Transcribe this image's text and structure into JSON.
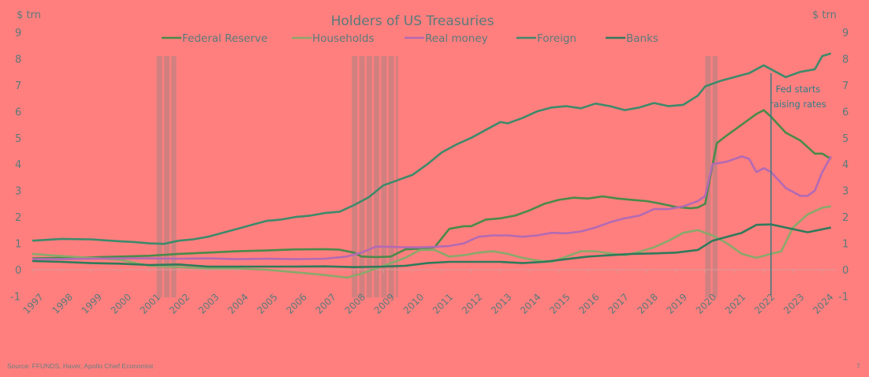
{
  "chart_data": {
    "type": "line",
    "title": "Holders of US Treasuries",
    "ylabel_left": "$ trn",
    "ylabel_right": "$ trn",
    "xlabel": "",
    "ylim": [
      -1,
      9
    ],
    "yticks": [
      -1,
      0,
      1,
      2,
      3,
      4,
      5,
      6,
      7,
      8,
      9
    ],
    "xlim": [
      1997,
      2024.5
    ],
    "xticks": [
      "1997",
      "1998",
      "1999",
      "2000",
      "2001",
      "2002",
      "2003",
      "2004",
      "2005",
      "2006",
      "2007",
      "2008",
      "2009",
      "2010",
      "2011",
      "2012",
      "2013",
      "2014",
      "2015",
      "2016",
      "2017",
      "2018",
      "2019",
      "2020",
      "2021",
      "2022",
      "2023",
      "2024"
    ],
    "grid": false,
    "legend_position": "top-center",
    "recessions": [
      [
        2001.25,
        2001.92
      ],
      [
        2007.92,
        2009.5
      ],
      [
        2020.0,
        2020.42
      ]
    ],
    "annotations": [
      {
        "x": 2022.25,
        "text_lines": [
          "Fed starts",
          "raising rates"
        ],
        "type": "vertical-line"
      }
    ],
    "series": [
      {
        "name": "Federal Reserve",
        "color": "#4a8a4a",
        "points": [
          [
            1997,
            0.43
          ],
          [
            1998,
            0.45
          ],
          [
            1999,
            0.47
          ],
          [
            2000,
            0.5
          ],
          [
            2001,
            0.53
          ],
          [
            2002,
            0.6
          ],
          [
            2003,
            0.65
          ],
          [
            2004,
            0.7
          ],
          [
            2005,
            0.73
          ],
          [
            2006,
            0.77
          ],
          [
            2007,
            0.78
          ],
          [
            2007.5,
            0.76
          ],
          [
            2008,
            0.65
          ],
          [
            2008.25,
            0.5
          ],
          [
            2008.75,
            0.48
          ],
          [
            2009.25,
            0.5
          ],
          [
            2009.75,
            0.77
          ],
          [
            2010.25,
            0.8
          ],
          [
            2010.75,
            0.85
          ],
          [
            2011.25,
            1.55
          ],
          [
            2011.75,
            1.65
          ],
          [
            2012,
            1.65
          ],
          [
            2012.5,
            1.9
          ],
          [
            2013,
            1.95
          ],
          [
            2013.5,
            2.05
          ],
          [
            2014,
            2.25
          ],
          [
            2014.5,
            2.5
          ],
          [
            2015,
            2.65
          ],
          [
            2015.5,
            2.73
          ],
          [
            2016,
            2.7
          ],
          [
            2016.5,
            2.78
          ],
          [
            2017,
            2.7
          ],
          [
            2017.5,
            2.65
          ],
          [
            2018,
            2.6
          ],
          [
            2018.5,
            2.5
          ],
          [
            2019,
            2.38
          ],
          [
            2019.5,
            2.33
          ],
          [
            2019.75,
            2.36
          ],
          [
            2020,
            2.5
          ],
          [
            2020.15,
            3.4
          ],
          [
            2020.4,
            4.8
          ],
          [
            2020.75,
            5.1
          ],
          [
            2021.25,
            5.5
          ],
          [
            2021.75,
            5.9
          ],
          [
            2022,
            6.05
          ],
          [
            2022.25,
            5.8
          ],
          [
            2022.75,
            5.2
          ],
          [
            2023.25,
            4.9
          ],
          [
            2023.75,
            4.4
          ],
          [
            2024,
            4.4
          ],
          [
            2024.3,
            4.2
          ]
        ]
      },
      {
        "name": "Households",
        "color": "#8aa86a",
        "points": [
          [
            1997,
            0.6
          ],
          [
            1998,
            0.52
          ],
          [
            1999,
            0.45
          ],
          [
            2000,
            0.38
          ],
          [
            2001,
            0.15
          ],
          [
            2002,
            0.1
          ],
          [
            2003,
            0.05
          ],
          [
            2004,
            0.05
          ],
          [
            2005,
            0.0
          ],
          [
            2006,
            -0.1
          ],
          [
            2007,
            -0.2
          ],
          [
            2007.75,
            -0.3
          ],
          [
            2008.25,
            -0.15
          ],
          [
            2008.75,
            0.05
          ],
          [
            2009.25,
            0.25
          ],
          [
            2009.75,
            0.45
          ],
          [
            2010.25,
            0.75
          ],
          [
            2010.75,
            0.75
          ],
          [
            2011.25,
            0.5
          ],
          [
            2011.75,
            0.55
          ],
          [
            2012.25,
            0.65
          ],
          [
            2012.75,
            0.7
          ],
          [
            2013.25,
            0.6
          ],
          [
            2013.75,
            0.45
          ],
          [
            2014.25,
            0.35
          ],
          [
            2014.75,
            0.3
          ],
          [
            2015.25,
            0.5
          ],
          [
            2015.75,
            0.7
          ],
          [
            2016.25,
            0.7
          ],
          [
            2016.75,
            0.62
          ],
          [
            2017.25,
            0.55
          ],
          [
            2017.75,
            0.68
          ],
          [
            2018.25,
            0.85
          ],
          [
            2018.75,
            1.1
          ],
          [
            2019.25,
            1.4
          ],
          [
            2019.75,
            1.5
          ],
          [
            2020.25,
            1.3
          ],
          [
            2020.75,
            1.0
          ],
          [
            2021.25,
            0.6
          ],
          [
            2021.75,
            0.45
          ],
          [
            2022.25,
            0.6
          ],
          [
            2022.6,
            0.7
          ],
          [
            2023,
            1.6
          ],
          [
            2023.5,
            2.1
          ],
          [
            2024,
            2.35
          ],
          [
            2024.3,
            2.4
          ]
        ]
      },
      {
        "name": "Real money",
        "color": "#b36ab3",
        "points": [
          [
            1997,
            0.4
          ],
          [
            1998,
            0.4
          ],
          [
            1999,
            0.42
          ],
          [
            2000,
            0.43
          ],
          [
            2001,
            0.43
          ],
          [
            2002,
            0.42
          ],
          [
            2003,
            0.43
          ],
          [
            2004,
            0.4
          ],
          [
            2005,
            0.42
          ],
          [
            2006,
            0.4
          ],
          [
            2007,
            0.42
          ],
          [
            2007.75,
            0.5
          ],
          [
            2008.25,
            0.65
          ],
          [
            2008.75,
            0.88
          ],
          [
            2009.25,
            0.87
          ],
          [
            2009.75,
            0.85
          ],
          [
            2010.25,
            0.85
          ],
          [
            2010.75,
            0.87
          ],
          [
            2011.25,
            0.9
          ],
          [
            2011.75,
            1.0
          ],
          [
            2012.25,
            1.25
          ],
          [
            2012.75,
            1.3
          ],
          [
            2013.25,
            1.3
          ],
          [
            2013.75,
            1.25
          ],
          [
            2014.25,
            1.3
          ],
          [
            2014.75,
            1.4
          ],
          [
            2015.25,
            1.38
          ],
          [
            2015.75,
            1.45
          ],
          [
            2016.25,
            1.6
          ],
          [
            2016.75,
            1.8
          ],
          [
            2017.25,
            1.95
          ],
          [
            2017.75,
            2.05
          ],
          [
            2018.25,
            2.3
          ],
          [
            2018.75,
            2.3
          ],
          [
            2019.25,
            2.4
          ],
          [
            2019.75,
            2.6
          ],
          [
            2020,
            2.8
          ],
          [
            2020.25,
            4.0
          ],
          [
            2020.75,
            4.1
          ],
          [
            2021.25,
            4.3
          ],
          [
            2021.5,
            4.2
          ],
          [
            2021.75,
            3.7
          ],
          [
            2022,
            3.85
          ],
          [
            2022.25,
            3.7
          ],
          [
            2022.75,
            3.1
          ],
          [
            2023.25,
            2.8
          ],
          [
            2023.5,
            2.8
          ],
          [
            2023.75,
            3.0
          ],
          [
            2024,
            3.7
          ],
          [
            2024.3,
            4.3
          ]
        ]
      },
      {
        "name": "Foreign",
        "color": "#3e8a6a",
        "points": [
          [
            1997,
            1.1
          ],
          [
            1998,
            1.17
          ],
          [
            1999,
            1.15
          ],
          [
            2000,
            1.08
          ],
          [
            2000.5,
            1.05
          ],
          [
            2001,
            1.0
          ],
          [
            2001.5,
            0.98
          ],
          [
            2002,
            1.1
          ],
          [
            2002.5,
            1.15
          ],
          [
            2003,
            1.25
          ],
          [
            2003.5,
            1.4
          ],
          [
            2004,
            1.55
          ],
          [
            2004.5,
            1.7
          ],
          [
            2005,
            1.85
          ],
          [
            2005.5,
            1.9
          ],
          [
            2006,
            2.0
          ],
          [
            2006.5,
            2.05
          ],
          [
            2007,
            2.15
          ],
          [
            2007.5,
            2.2
          ],
          [
            2008,
            2.45
          ],
          [
            2008.5,
            2.75
          ],
          [
            2009,
            3.2
          ],
          [
            2009.5,
            3.4
          ],
          [
            2010,
            3.6
          ],
          [
            2010.5,
            4.0
          ],
          [
            2011,
            4.45
          ],
          [
            2011.5,
            4.75
          ],
          [
            2012,
            5.0
          ],
          [
            2012.5,
            5.3
          ],
          [
            2013,
            5.6
          ],
          [
            2013.25,
            5.55
          ],
          [
            2013.75,
            5.75
          ],
          [
            2014.25,
            6.0
          ],
          [
            2014.75,
            6.15
          ],
          [
            2015.25,
            6.2
          ],
          [
            2015.75,
            6.12
          ],
          [
            2016.25,
            6.3
          ],
          [
            2016.75,
            6.2
          ],
          [
            2017.25,
            6.05
          ],
          [
            2017.75,
            6.15
          ],
          [
            2018.25,
            6.32
          ],
          [
            2018.75,
            6.2
          ],
          [
            2019.25,
            6.25
          ],
          [
            2019.75,
            6.6
          ],
          [
            2020,
            6.95
          ],
          [
            2020.5,
            7.15
          ],
          [
            2021,
            7.3
          ],
          [
            2021.5,
            7.45
          ],
          [
            2022,
            7.75
          ],
          [
            2022.75,
            7.3
          ],
          [
            2023.25,
            7.5
          ],
          [
            2023.75,
            7.6
          ],
          [
            2024,
            8.1
          ],
          [
            2024.3,
            8.2
          ]
        ]
      },
      {
        "name": "Banks",
        "color": "#2f7a5a",
        "points": [
          [
            1997,
            0.33
          ],
          [
            1998,
            0.3
          ],
          [
            1999,
            0.25
          ],
          [
            2000,
            0.23
          ],
          [
            2001,
            0.18
          ],
          [
            2002,
            0.2
          ],
          [
            2003,
            0.12
          ],
          [
            2004,
            0.12
          ],
          [
            2005,
            0.12
          ],
          [
            2006,
            0.12
          ],
          [
            2007,
            0.13
          ],
          [
            2008,
            0.1
          ],
          [
            2009,
            0.12
          ],
          [
            2009.75,
            0.15
          ],
          [
            2010.5,
            0.25
          ],
          [
            2011.25,
            0.3
          ],
          [
            2012,
            0.3
          ],
          [
            2013,
            0.3
          ],
          [
            2013.75,
            0.25
          ],
          [
            2014.5,
            0.3
          ],
          [
            2015.25,
            0.4
          ],
          [
            2016,
            0.5
          ],
          [
            2016.75,
            0.55
          ],
          [
            2017.5,
            0.6
          ],
          [
            2018.25,
            0.62
          ],
          [
            2019,
            0.65
          ],
          [
            2019.75,
            0.75
          ],
          [
            2020.25,
            1.1
          ],
          [
            2020.75,
            1.25
          ],
          [
            2021.25,
            1.4
          ],
          [
            2021.75,
            1.7
          ],
          [
            2022.25,
            1.72
          ],
          [
            2022.75,
            1.6
          ],
          [
            2023.5,
            1.42
          ],
          [
            2024.3,
            1.6
          ]
        ]
      }
    ]
  },
  "footer": {
    "source": "Source: FFUNDS, Haver, Apollo Chief Economist",
    "page_number": "7"
  }
}
